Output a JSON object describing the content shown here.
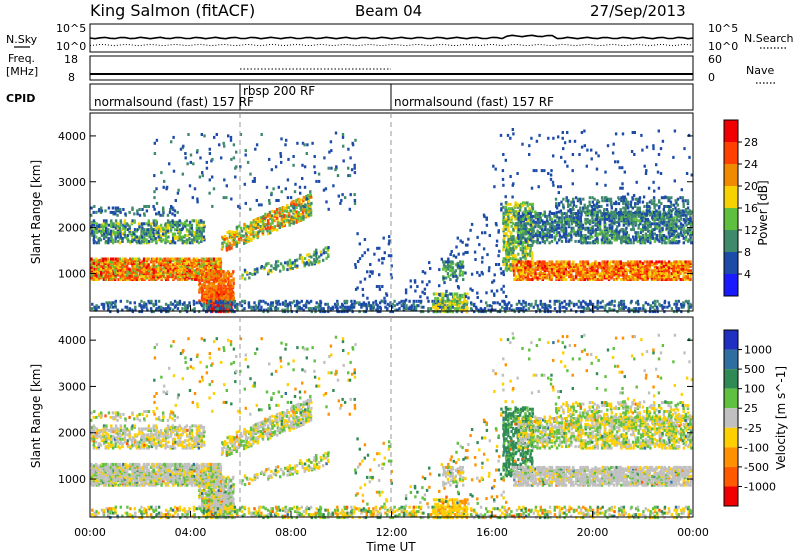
{
  "header": {
    "title": "King Salmon (fitACF)",
    "beam": "Beam 04",
    "date": "27/Sep/2013"
  },
  "side_labels": {
    "nsky": "N.Sky",
    "nsky_hi": "10^5",
    "nsky_lo": "10^0",
    "freq_line1": "Freq.",
    "freq_line2": "[MHz]",
    "freq_hi": "18",
    "freq_lo": "8",
    "cpid": "CPID",
    "nsearch": "N.Search",
    "nsearch_hi": "10^5",
    "nsearch_lo": "10^0",
    "nave": "Nave",
    "nave_hi": "60",
    "nave_lo": "0"
  },
  "cpid_labels": {
    "a": "normalsound (fast) 157 RF",
    "b": "rbsp 200 RF",
    "c": "normalsound (fast) 157 RF"
  },
  "x_axis": {
    "title": "Time UT",
    "ticks": [
      "00:00",
      "04:00",
      "08:00",
      "12:00",
      "16:00",
      "20:00",
      "00:00"
    ]
  },
  "y_axis": {
    "title": "Slant Range [km]",
    "ticks": [
      "1000",
      "2000",
      "3000",
      "4000"
    ]
  },
  "power_bar": {
    "title": "Power [dB]",
    "labels": [
      "4",
      "8",
      "12",
      "16",
      "20",
      "24",
      "28"
    ],
    "colors": [
      "#1a1aff",
      "#1d4ca8",
      "#3f8a6a",
      "#5fbf3f",
      "#f5d200",
      "#f08a00",
      "#ff4000",
      "#f00000"
    ]
  },
  "velocity_bar": {
    "title": "Velocity [m s^-1]",
    "labels": [
      "1000",
      "500",
      "100",
      "25",
      "-25",
      "-100",
      "-500",
      "-1000"
    ],
    "colors": [
      "#2030c0",
      "#2e6fa0",
      "#2f8a55",
      "#60c040",
      "#c0c0c0",
      "#ffd000",
      "#ff9000",
      "#ff5a00",
      "#f00000"
    ]
  },
  "chart_data": {
    "type": "heatmap",
    "x_range_hours": [
      0,
      24
    ],
    "y_range_km": [
      180,
      4500
    ],
    "power_scale_db": [
      0,
      32
    ],
    "velocity_scale_ms": [
      -1000,
      1000
    ],
    "panels": [
      "power",
      "velocity"
    ]
  }
}
